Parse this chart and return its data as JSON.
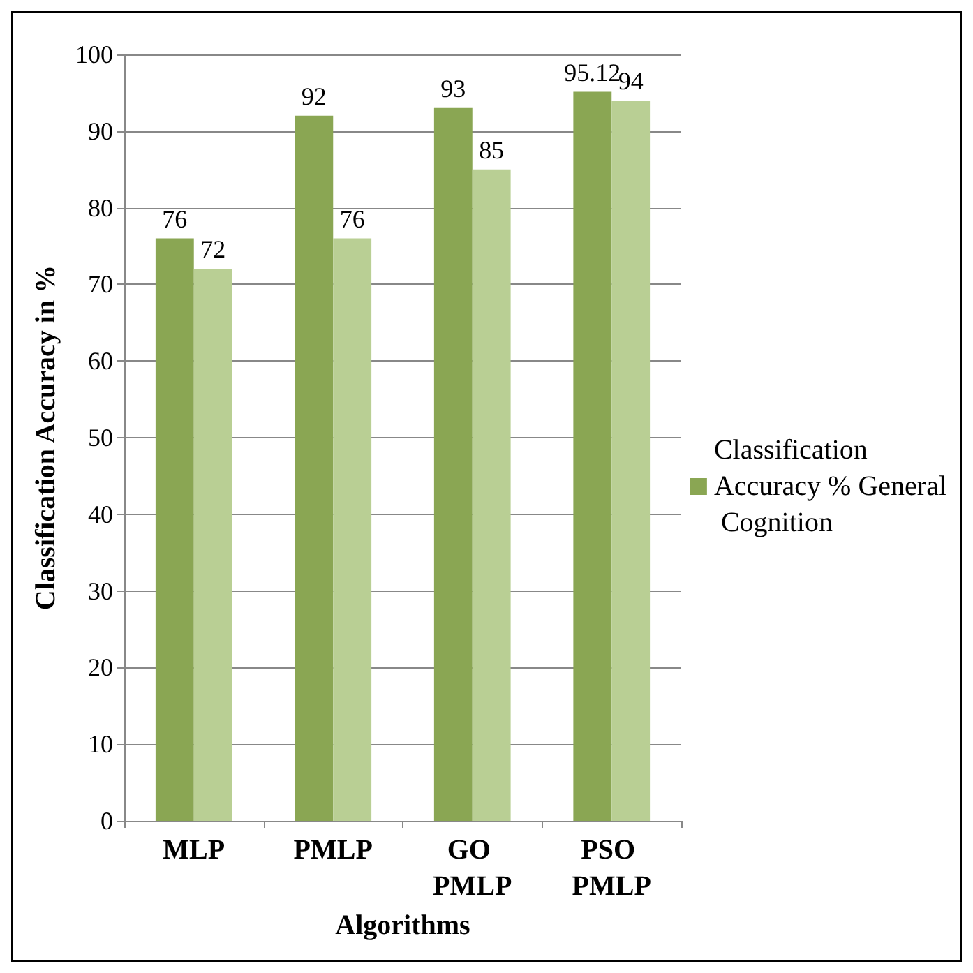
{
  "chart_data": {
    "type": "bar",
    "xlabel": "Algorithms",
    "ylabel": "Classification Accuracy in %",
    "categories": [
      "MLP",
      "PMLP",
      "GO PMLP",
      "PSO PMLP"
    ],
    "series": [
      {
        "name": "Classification Accuracy % General Cognition",
        "color": "#8aa653",
        "values": [
          76,
          92,
          93,
          95.12
        ]
      },
      {
        "color": "#b9cf94",
        "values": [
          72,
          76,
          85,
          94
        ]
      }
    ],
    "ylim": [
      0,
      100
    ],
    "yticks": [
      0,
      10,
      20,
      30,
      40,
      50,
      60,
      70,
      80,
      90,
      100
    ],
    "grid": "y",
    "legend": "right",
    "data_labels": true
  }
}
